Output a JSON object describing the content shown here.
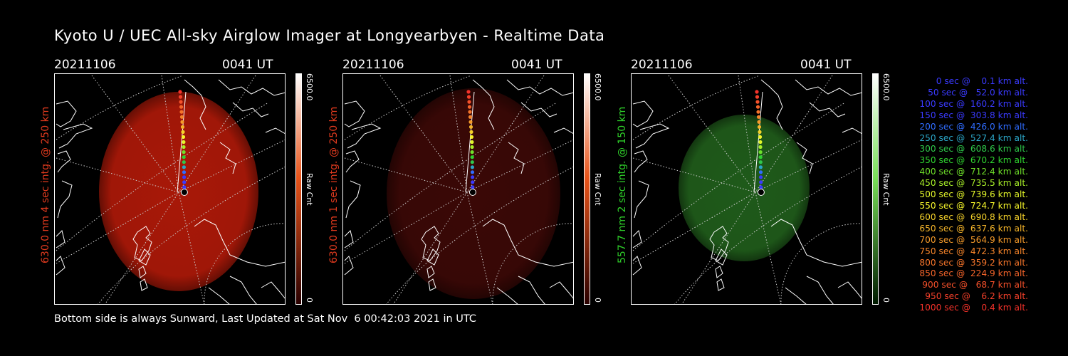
{
  "title": "Kyoto U / UEC All-sky Airglow Imager at Longyearbyen - Realtime Data",
  "panels": [
    {
      "date": "20211106",
      "time": "0041 UT",
      "ylabel": "630.0 nm 4 sec intg. @ 250 km",
      "label_color": "#e03a1e",
      "colorbar": {
        "max": "6500.0",
        "unit": "Raw Cnt",
        "min": "0",
        "top_color": "#ffffff",
        "mid_color": "#e8541a",
        "bottom_color": "#2a0000"
      },
      "image_color": "#a81808"
    },
    {
      "date": "20211106",
      "time": "0041 UT",
      "ylabel": "630.0 nm 1 sec intg. @ 250 km",
      "label_color": "#e03a1e",
      "colorbar": {
        "max": "6500.0",
        "unit": "Raw Cnt",
        "min": "0",
        "top_color": "#ffffff",
        "mid_color": "#e8541a",
        "bottom_color": "#2a0000"
      },
      "image_color": "#3a0806"
    },
    {
      "date": "20211106",
      "time": "0041 UT",
      "ylabel": "557.7 nm 2 sec intg. @ 150 km",
      "label_color": "#2fd02a",
      "colorbar": {
        "max": "6500.0",
        "unit": "Raw Cnt",
        "min": "0",
        "top_color": "#ffffff",
        "mid_color": "#7adf5a",
        "bottom_color": "#001a00"
      },
      "image_color": "#1f5a1a"
    }
  ],
  "legend": [
    {
      "text": "0 sec @    0.1 km alt.",
      "color": "#3a3aff"
    },
    {
      "text": "50 sec @   52.0 km alt.",
      "color": "#3a3aff"
    },
    {
      "text": "100 sec @  160.2 km alt.",
      "color": "#3a3aff"
    },
    {
      "text": "150 sec @  303.8 km alt.",
      "color": "#3a3aff"
    },
    {
      "text": "200 sec @  426.0 km alt.",
      "color": "#2f6cff"
    },
    {
      "text": "250 sec @  527.4 km alt.",
      "color": "#2ba6c8"
    },
    {
      "text": "300 sec @  608.6 km alt.",
      "color": "#2fc84a"
    },
    {
      "text": "350 sec @  670.2 km alt.",
      "color": "#2fd42f"
    },
    {
      "text": "400 sec @  712.4 km alt.",
      "color": "#6fe02a"
    },
    {
      "text": "450 sec @  735.5 km alt.",
      "color": "#a8ef28"
    },
    {
      "text": "500 sec @  739.6 km alt.",
      "color": "#e2f52a"
    },
    {
      "text": "550 sec @  724.7 km alt.",
      "color": "#f5f52a"
    },
    {
      "text": "600 sec @  690.8 km alt.",
      "color": "#f5d22a"
    },
    {
      "text": "650 sec @  637.6 km alt.",
      "color": "#f5b52a"
    },
    {
      "text": "700 sec @  564.9 km alt.",
      "color": "#f59a2a"
    },
    {
      "text": "750 sec @  472.3 km alt.",
      "color": "#f5842a"
    },
    {
      "text": "800 sec @  359.2 km alt.",
      "color": "#f5742a"
    },
    {
      "text": "850 sec @  224.9 km alt.",
      "color": "#f5642a"
    },
    {
      "text": "900 sec @   68.7 km alt.",
      "color": "#f5502a"
    },
    {
      "text": "950 sec @    6.2 km alt.",
      "color": "#f5402a"
    },
    {
      "text": "1000 sec @    0.4 km alt.",
      "color": "#f5322a"
    }
  ],
  "footer": "Bottom side is always Sunward, Last Updated at Sat Nov  6 00:42:03 2021 in UTC"
}
